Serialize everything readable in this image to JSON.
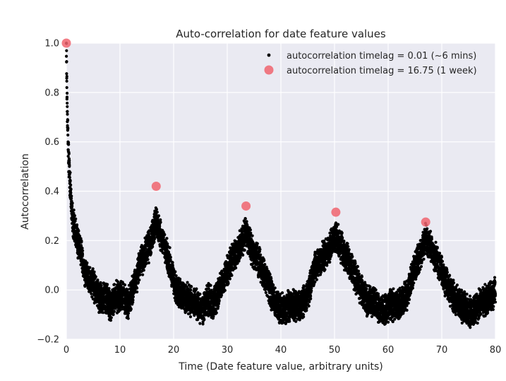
{
  "chart_data": {
    "type": "scatter",
    "title": "Auto-correlation for date feature values",
    "xlabel": "Time (Date feature value, arbitrary units)",
    "ylabel": "Autocorrelation",
    "xlim": [
      0,
      80
    ],
    "ylim": [
      -0.2,
      1.0
    ],
    "x_ticks": [
      0,
      10,
      20,
      30,
      40,
      50,
      60,
      70,
      80
    ],
    "y_ticks": [
      -0.2,
      0.0,
      0.2,
      0.4,
      0.6,
      0.8,
      1.0
    ],
    "x_tick_labels": [
      "0",
      "10",
      "20",
      "30",
      "40",
      "50",
      "60",
      "70",
      "80"
    ],
    "y_tick_labels": [
      "−0.2",
      "0.0",
      "0.2",
      "0.4",
      "0.6",
      "0.8",
      "1.0"
    ],
    "grid": true,
    "legend_position": "top-right",
    "series": [
      {
        "name": "autocorrelation timelag = 0.01 (~6 mins)",
        "color": "#000000",
        "marker": "small-dot",
        "step": 0.01,
        "weekly_period": 16.75,
        "profile_points": [
          [
            0.0,
            1.0
          ],
          [
            0.15,
            0.74
          ],
          [
            0.4,
            0.55
          ],
          [
            0.8,
            0.38
          ],
          [
            1.3,
            0.27
          ],
          [
            1.8,
            0.22
          ],
          [
            2.5,
            0.17
          ],
          [
            3.5,
            0.07
          ],
          [
            5.0,
            0.02
          ],
          [
            6.0,
            -0.03
          ],
          [
            7.5,
            -0.03
          ],
          [
            8.3,
            -0.07
          ],
          [
            9.2,
            -0.03
          ],
          [
            10.5,
            -0.02
          ],
          [
            11.5,
            -0.06
          ],
          [
            12.5,
            0.01
          ],
          [
            14.0,
            0.12
          ],
          [
            15.5,
            0.18
          ],
          [
            16.75,
            0.28
          ],
          [
            17.8,
            0.2
          ],
          [
            19.0,
            0.13
          ],
          [
            20.5,
            0.0
          ],
          [
            22.0,
            -0.03
          ],
          [
            23.5,
            -0.05
          ],
          [
            25.2,
            -0.08
          ],
          [
            26.5,
            -0.04
          ],
          [
            27.5,
            -0.06
          ],
          [
            29.0,
            0.03
          ],
          [
            31.0,
            0.13
          ],
          [
            32.5,
            0.18
          ],
          [
            33.5,
            0.24
          ],
          [
            34.5,
            0.17
          ],
          [
            36.0,
            0.11
          ],
          [
            37.5,
            0.03
          ],
          [
            39.0,
            -0.06
          ],
          [
            40.5,
            -0.08
          ],
          [
            42.0,
            -0.06
          ],
          [
            43.5,
            -0.07
          ],
          [
            45.0,
            -0.02
          ],
          [
            46.5,
            0.1
          ],
          [
            48.5,
            0.15
          ],
          [
            50.25,
            0.22
          ],
          [
            51.5,
            0.16
          ],
          [
            53.0,
            0.1
          ],
          [
            54.5,
            0.02
          ],
          [
            56.0,
            -0.04
          ],
          [
            57.5,
            -0.06
          ],
          [
            59.0,
            -0.09
          ],
          [
            60.5,
            -0.06
          ],
          [
            62.0,
            -0.06
          ],
          [
            63.5,
            -0.02
          ],
          [
            65.0,
            0.1
          ],
          [
            66.0,
            0.14
          ],
          [
            67.0,
            0.21
          ],
          [
            68.0,
            0.17
          ],
          [
            69.5,
            0.1
          ],
          [
            71.0,
            0.02
          ],
          [
            72.5,
            -0.04
          ],
          [
            74.0,
            -0.07
          ],
          [
            75.5,
            -0.09
          ],
          [
            77.0,
            -0.06
          ],
          [
            78.5,
            -0.04
          ],
          [
            80.0,
            0.0
          ]
        ]
      },
      {
        "name": "autocorrelation timelag = 16.75 (1 week)",
        "color": "#f0646e",
        "marker": "large-circle",
        "points": [
          {
            "x": 0.0,
            "y": 1.0
          },
          {
            "x": 16.75,
            "y": 0.42
          },
          {
            "x": 33.5,
            "y": 0.34
          },
          {
            "x": 50.25,
            "y": 0.315
          },
          {
            "x": 67.0,
            "y": 0.275
          }
        ]
      }
    ]
  }
}
